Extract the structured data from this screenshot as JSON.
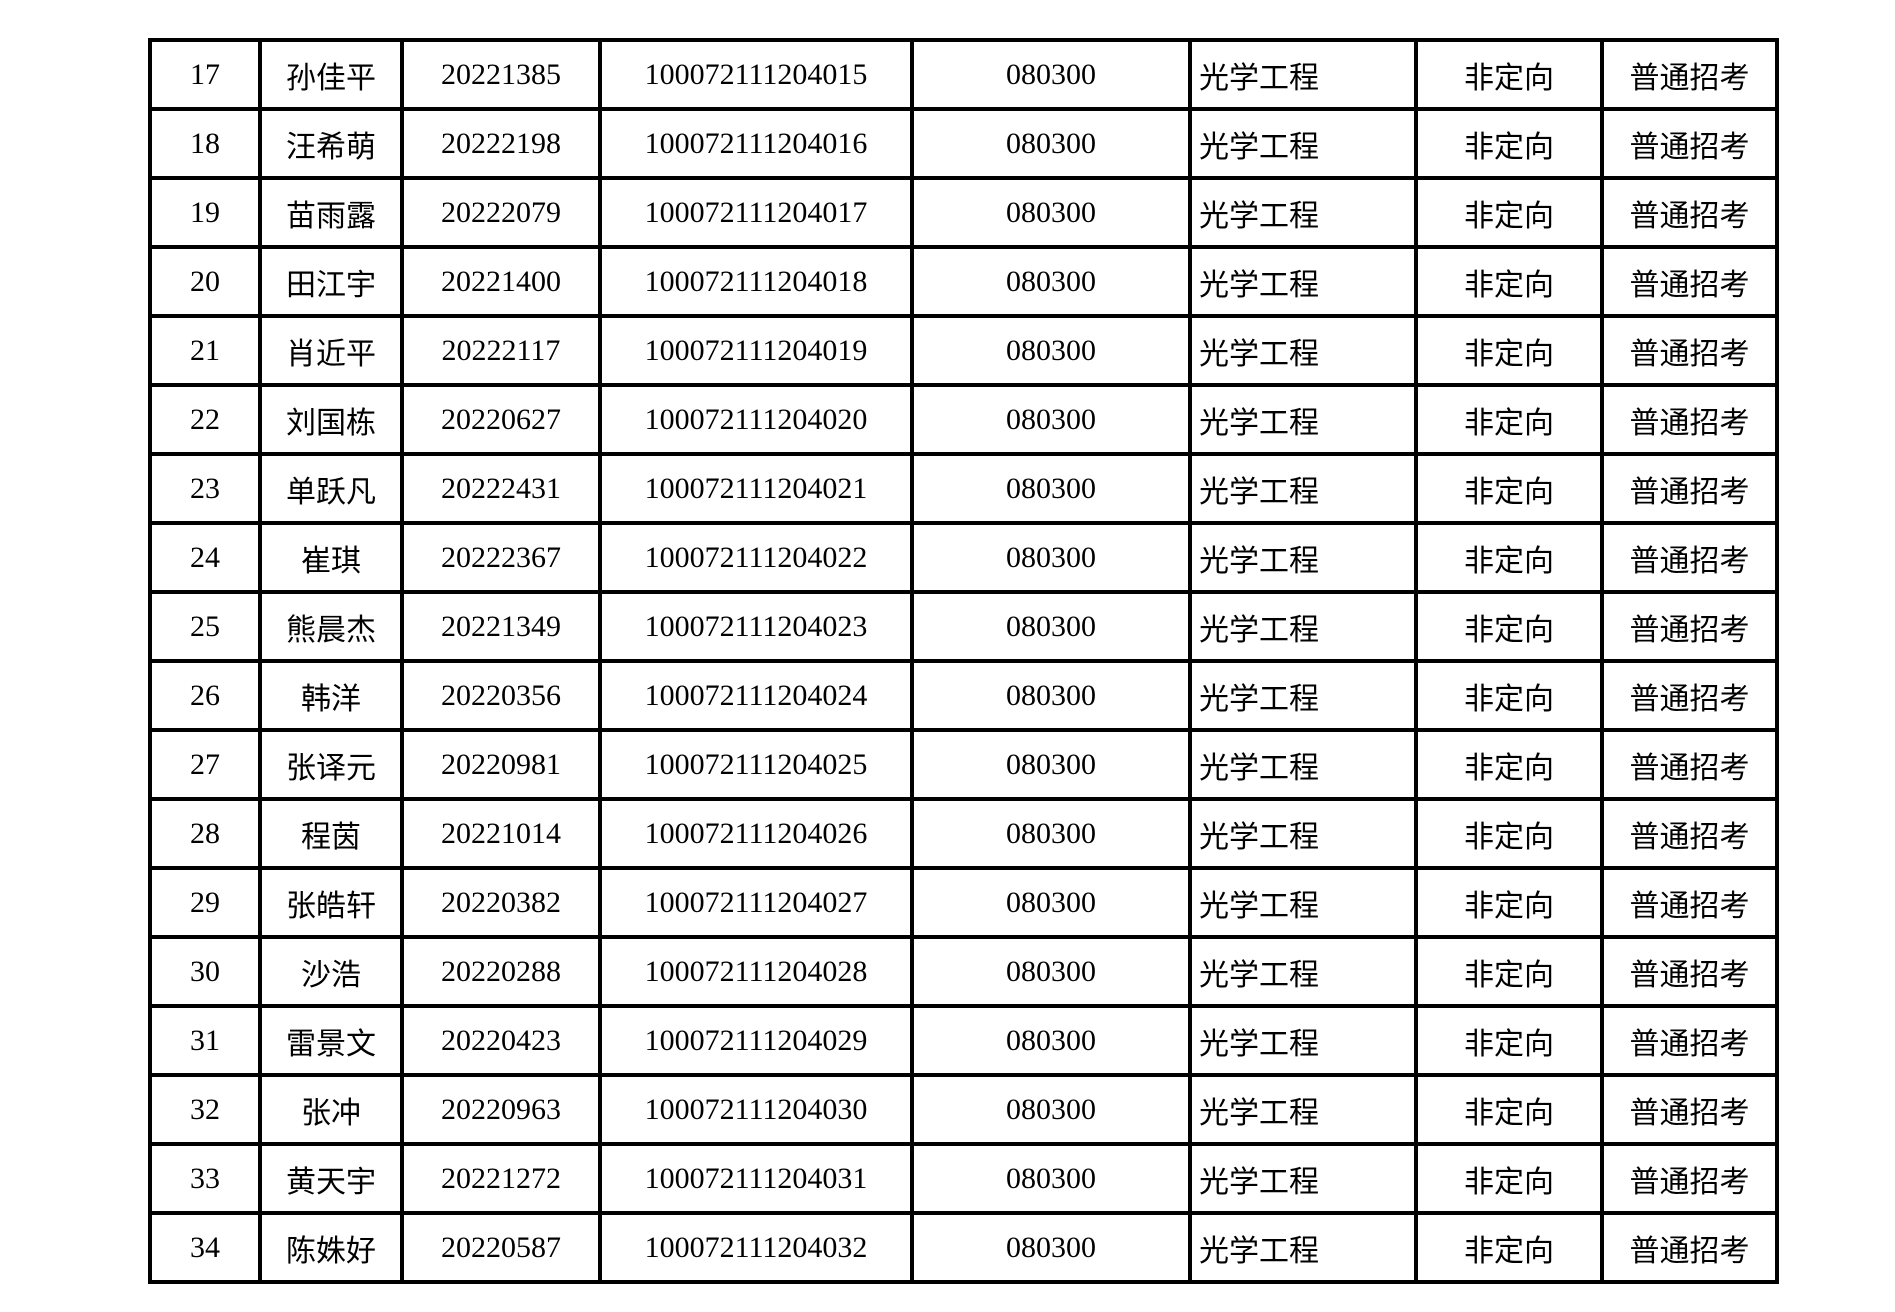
{
  "page": {
    "background_color": "#ffffff",
    "text_color": "#000000",
    "border_color": "#000000"
  },
  "table": {
    "columns": [
      {
        "key": "index",
        "align": "center"
      },
      {
        "key": "name",
        "align": "center"
      },
      {
        "key": "student-number",
        "align": "center"
      },
      {
        "key": "exam-number",
        "align": "center"
      },
      {
        "key": "major-code",
        "align": "center"
      },
      {
        "key": "major-name",
        "align": "left"
      },
      {
        "key": "study-mode",
        "align": "center"
      },
      {
        "key": "admission-type",
        "align": "center"
      }
    ],
    "rows": [
      [
        "17",
        "孙佳平",
        "20221385",
        "100072111204015",
        "080300",
        "光学工程",
        "非定向",
        "普通招考"
      ],
      [
        "18",
        "汪希萌",
        "20222198",
        "100072111204016",
        "080300",
        "光学工程",
        "非定向",
        "普通招考"
      ],
      [
        "19",
        "苗雨露",
        "20222079",
        "100072111204017",
        "080300",
        "光学工程",
        "非定向",
        "普通招考"
      ],
      [
        "20",
        "田江宇",
        "20221400",
        "100072111204018",
        "080300",
        "光学工程",
        "非定向",
        "普通招考"
      ],
      [
        "21",
        "肖近平",
        "20222117",
        "100072111204019",
        "080300",
        "光学工程",
        "非定向",
        "普通招考"
      ],
      [
        "22",
        "刘国栋",
        "20220627",
        "100072111204020",
        "080300",
        "光学工程",
        "非定向",
        "普通招考"
      ],
      [
        "23",
        "单跃凡",
        "20222431",
        "100072111204021",
        "080300",
        "光学工程",
        "非定向",
        "普通招考"
      ],
      [
        "24",
        "崔琪",
        "20222367",
        "100072111204022",
        "080300",
        "光学工程",
        "非定向",
        "普通招考"
      ],
      [
        "25",
        "熊晨杰",
        "20221349",
        "100072111204023",
        "080300",
        "光学工程",
        "非定向",
        "普通招考"
      ],
      [
        "26",
        "韩洋",
        "20220356",
        "100072111204024",
        "080300",
        "光学工程",
        "非定向",
        "普通招考"
      ],
      [
        "27",
        "张译元",
        "20220981",
        "100072111204025",
        "080300",
        "光学工程",
        "非定向",
        "普通招考"
      ],
      [
        "28",
        "程茵",
        "20221014",
        "100072111204026",
        "080300",
        "光学工程",
        "非定向",
        "普通招考"
      ],
      [
        "29",
        "张皓轩",
        "20220382",
        "100072111204027",
        "080300",
        "光学工程",
        "非定向",
        "普通招考"
      ],
      [
        "30",
        "沙浩",
        "20220288",
        "100072111204028",
        "080300",
        "光学工程",
        "非定向",
        "普通招考"
      ],
      [
        "31",
        "雷景文",
        "20220423",
        "100072111204029",
        "080300",
        "光学工程",
        "非定向",
        "普通招考"
      ],
      [
        "32",
        "张冲",
        "20220963",
        "100072111204030",
        "080300",
        "光学工程",
        "非定向",
        "普通招考"
      ],
      [
        "33",
        "黄天宇",
        "20221272",
        "100072111204031",
        "080300",
        "光学工程",
        "非定向",
        "普通招考"
      ],
      [
        "34",
        "陈姝好",
        "20220587",
        "100072111204032",
        "080300",
        "光学工程",
        "非定向",
        "普通招考"
      ]
    ]
  }
}
